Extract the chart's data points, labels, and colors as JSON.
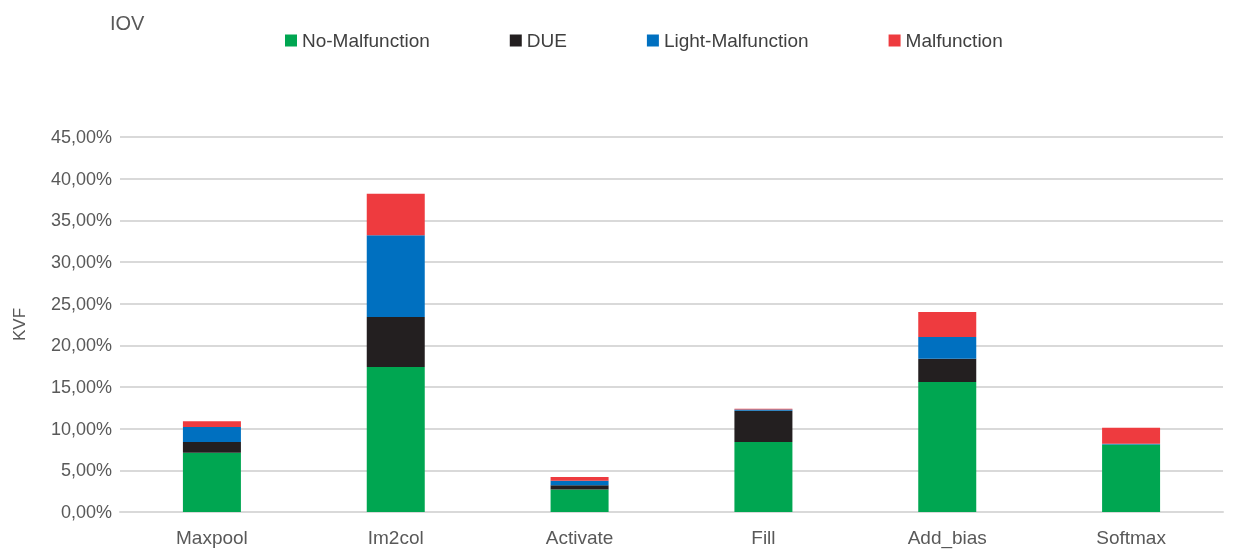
{
  "chart_data": {
    "type": "bar",
    "title": "IOV",
    "ylabel": "KVF",
    "stacked": true,
    "grid": "y",
    "legend": "top",
    "categories": [
      "Maxpool",
      "Im2col",
      "Activate",
      "Fill",
      "Add_bias",
      "Softmax"
    ],
    "series": [
      {
        "name": "No-Malfunction",
        "color": "#00a651",
        "values": [
          7.1,
          17.4,
          2.7,
          8.4,
          15.6,
          8.1
        ]
      },
      {
        "name": "DUE",
        "color": "#231f20",
        "values": [
          1.3,
          6.0,
          0.5,
          3.75,
          2.8,
          0
        ]
      },
      {
        "name": "Light-Malfunction",
        "color": "#0070c0",
        "values": [
          1.8,
          9.8,
          0.55,
          0.15,
          2.6,
          0.1
        ]
      },
      {
        "name": "Malfunction",
        "color": "#ee3b3f",
        "values": [
          0.7,
          5.0,
          0.45,
          0.1,
          3.0,
          1.9
        ]
      }
    ],
    "ylim": [
      0,
      45
    ],
    "yticks": [
      {
        "value": 0,
        "label": "0,00%"
      },
      {
        "value": 5,
        "label": "5,00%"
      },
      {
        "value": 10,
        "label": "10,00%"
      },
      {
        "value": 15,
        "label": "15,00%"
      },
      {
        "value": 20,
        "label": "20,00%"
      },
      {
        "value": 25,
        "label": "25,00%"
      },
      {
        "value": 30,
        "label": "30,00%"
      },
      {
        "value": 35,
        "label": "35,00%"
      },
      {
        "value": 40,
        "label": "40,00%"
      },
      {
        "value": 45,
        "label": "45,00%"
      }
    ]
  }
}
